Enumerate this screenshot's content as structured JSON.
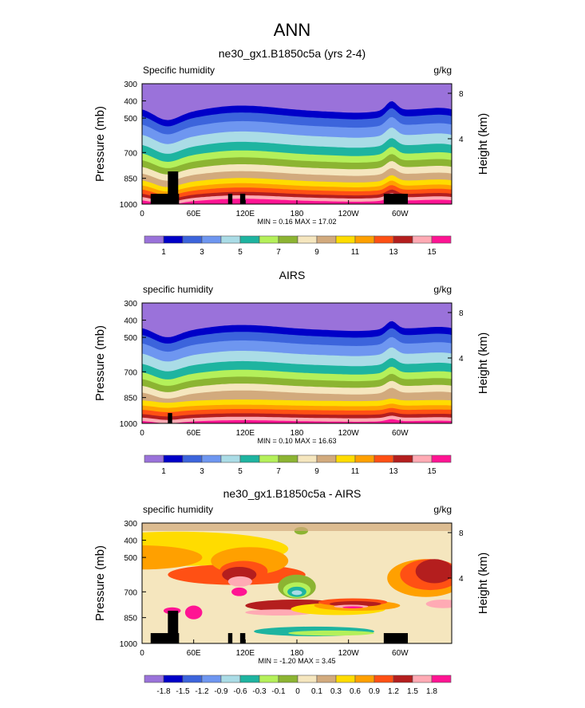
{
  "main_title": "ANN",
  "chart_data": [
    {
      "type": "heatmap",
      "title": "ne30_gx1.B1850c5a (yrs 2-4)",
      "left_label": "Specific humidity",
      "right_label": "g/kg",
      "ylabel": "Pressure (mb)",
      "y2label": "Height (km)",
      "yticks": [
        "300",
        "400",
        "500",
        "700",
        "850",
        "1000"
      ],
      "ylim": [
        300,
        1000
      ],
      "y2ticks": [
        "8",
        "4"
      ],
      "xticks": [
        "0",
        "60E",
        "120E",
        "180",
        "120W",
        "60W"
      ],
      "stats": {
        "min_label": "MIN =",
        "min": "0.16",
        "max_label": "MAX =",
        "max": "17.02"
      },
      "colorbar_labels": [
        "",
        "1",
        "",
        "3",
        "",
        "5",
        "",
        "7",
        "",
        "9",
        "",
        "11",
        "",
        "13",
        "",
        "15"
      ]
    },
    {
      "type": "heatmap",
      "title": "AIRS",
      "left_label": "specific humidity",
      "right_label": "g/kg",
      "ylabel": "Pressure (mb)",
      "y2label": "Height (km)",
      "yticks": [
        "300",
        "400",
        "500",
        "700",
        "850",
        "1000"
      ],
      "ylim": [
        300,
        1000
      ],
      "y2ticks": [
        "8",
        "4"
      ],
      "xticks": [
        "0",
        "60E",
        "120E",
        "180",
        "120W",
        "60W"
      ],
      "stats": {
        "min_label": "MIN =",
        "min": "0.10",
        "max_label": "MAX =",
        "max": "16.63"
      },
      "colorbar_labels": [
        "",
        "1",
        "",
        "3",
        "",
        "5",
        "",
        "7",
        "",
        "9",
        "",
        "11",
        "",
        "13",
        "",
        "15"
      ]
    },
    {
      "type": "heatmap",
      "title": "ne30_gx1.B1850c5a - AIRS",
      "left_label": "specific humidity",
      "right_label": "g/kg",
      "ylabel": "Pressure (mb)",
      "y2label": "Height (km)",
      "yticks": [
        "300",
        "400",
        "500",
        "700",
        "850",
        "1000"
      ],
      "ylim": [
        300,
        1000
      ],
      "y2ticks": [
        "8",
        "4"
      ],
      "xticks": [
        "0",
        "60E",
        "120E",
        "180",
        "120W",
        "60W"
      ],
      "stats": {
        "min_label": "MIN =",
        "min": "-1.20",
        "max_label": "MAX =",
        "max": "3.45"
      },
      "colorbar_labels": [
        "-1.8",
        "-1.5",
        "-1.2",
        "-0.9",
        "-0.6",
        "-0.3",
        "-0.1",
        "0",
        "0.1",
        "0.3",
        "0.6",
        "0.9",
        "1.2",
        "1.5",
        "1.8"
      ]
    }
  ],
  "colors": [
    "#9a72da",
    "#0000c8",
    "#3c64dc",
    "#6e96f0",
    "#aadce6",
    "#1eb4a0",
    "#b4f05a",
    "#8cb432",
    "#f5e6be",
    "#d2aa7d",
    "#ffdc00",
    "#ffa000",
    "#ff5014",
    "#b41e1e",
    "#ffaab4",
    "#ff1493"
  ]
}
